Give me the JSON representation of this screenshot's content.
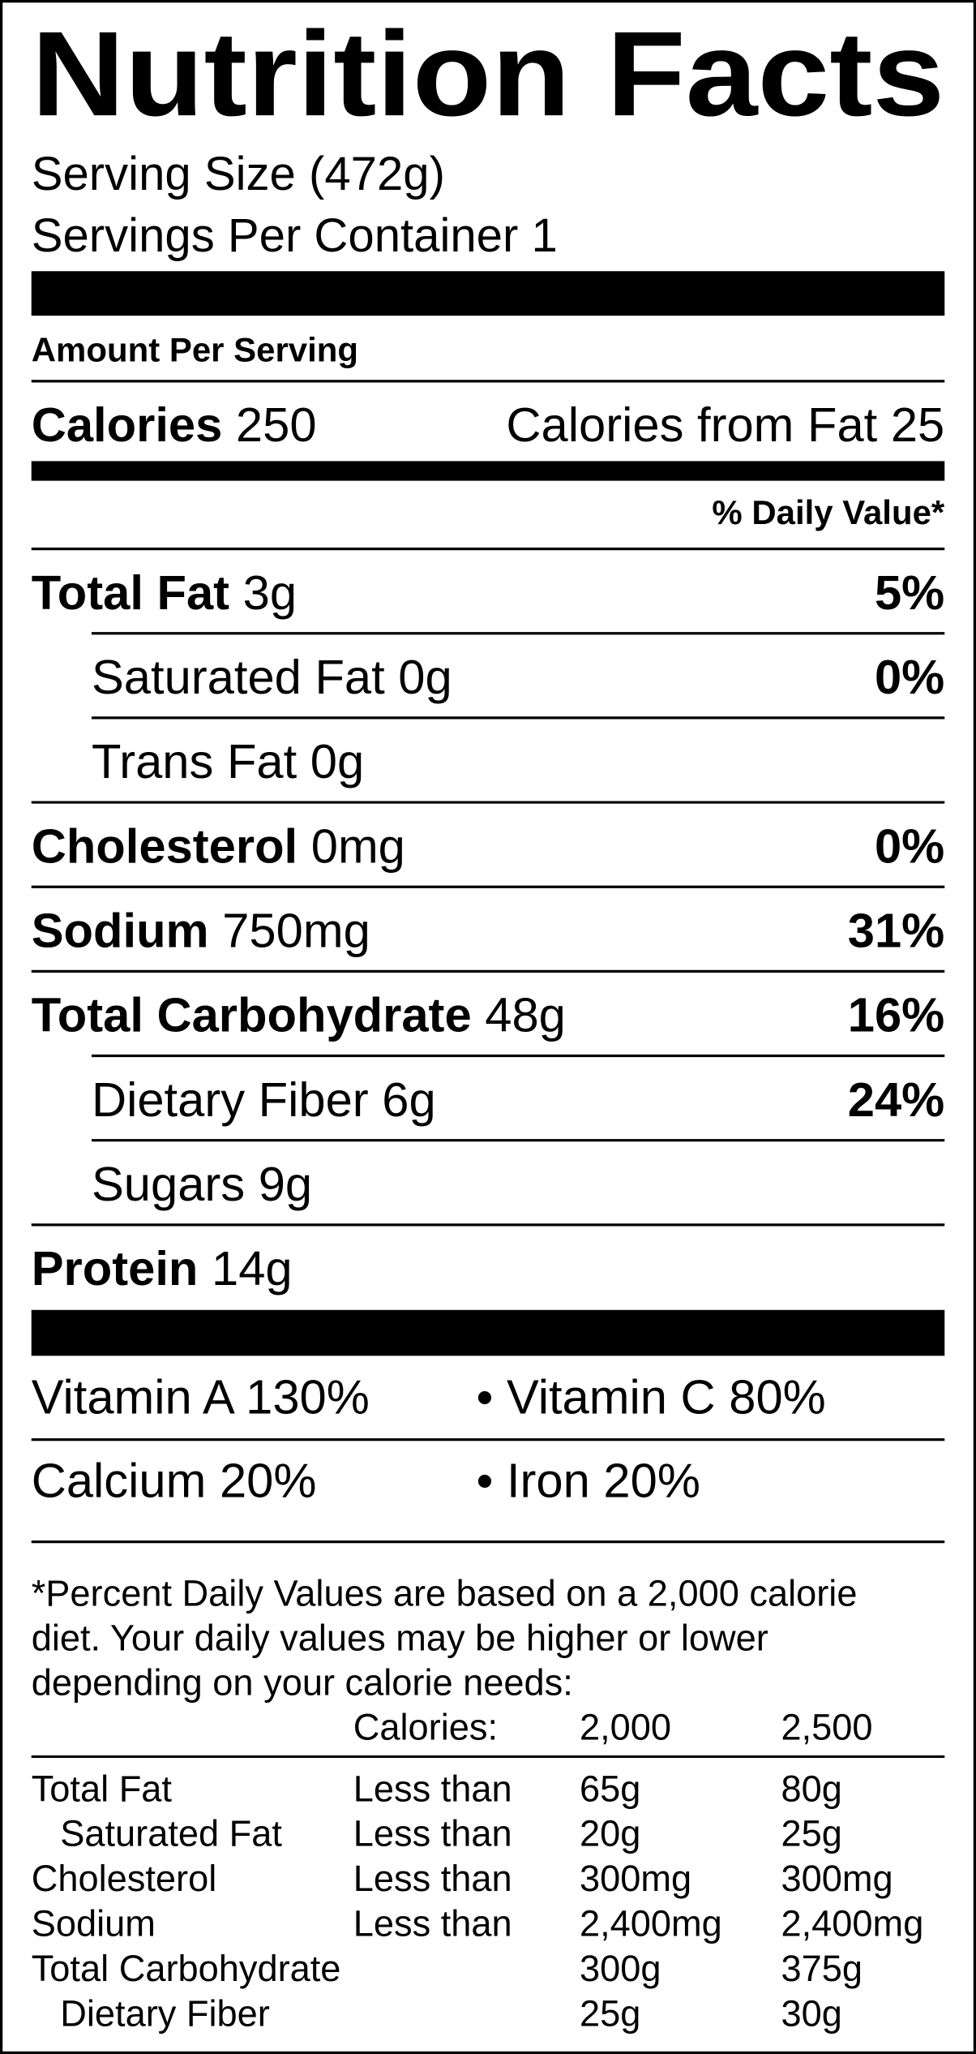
{
  "title": "Nutrition Facts",
  "serving_size": "Serving Size (472g)",
  "servings_per_container": "Servings Per Container 1",
  "amount_per_serving": "Amount Per Serving",
  "calories": {
    "label": "Calories",
    "value": "250"
  },
  "calories_from_fat": "Calories from Fat 25",
  "daily_value_header": "% Daily Value*",
  "nutrients": [
    {
      "name": "Total Fat",
      "amount": "3g",
      "dv": "5%"
    },
    {
      "name": "Saturated Fat",
      "amount": "0g",
      "dv": "0%"
    },
    {
      "name": "Trans Fat",
      "amount": "0g",
      "dv": null
    },
    {
      "name": "Cholesterol",
      "amount": "0mg",
      "dv": "0%"
    },
    {
      "name": "Sodium",
      "amount": "750mg",
      "dv": "31%"
    },
    {
      "name": "Total Carbohydrate",
      "amount": "48g",
      "dv": "16%"
    },
    {
      "name": "Dietary Fiber",
      "amount": "6g",
      "dv": "24%"
    },
    {
      "name": "Sugars",
      "amount": "9g",
      "dv": null
    },
    {
      "name": "Protein",
      "amount": "14g",
      "dv": null
    }
  ],
  "vitamins": [
    [
      "Vitamin A 130%",
      "• Vitamin C 80%"
    ],
    [
      "Calcium 20%",
      "• Iron 20%"
    ]
  ],
  "footnote": [
    "*Percent Daily Values are based on a 2,000 calorie",
    "diet. Your daily values may be higher or lower",
    "depending on your calorie needs:"
  ],
  "table": {
    "header": [
      "Calories:",
      "2,000",
      "2,500"
    ],
    "rows": [
      [
        "Total Fat",
        "Less than",
        "65g",
        "80g"
      ],
      [
        "Saturated Fat",
        "Less than",
        "20g",
        "25g"
      ],
      [
        "Cholesterol",
        "Less than",
        "300mg",
        "300mg"
      ],
      [
        "Sodium",
        "Less than",
        "2,400mg",
        "2,400mg"
      ],
      [
        "Total Carbohydrate",
        null,
        "300g",
        "375g"
      ],
      [
        "Dietary Fiber",
        null,
        "25g",
        "30g"
      ]
    ]
  }
}
